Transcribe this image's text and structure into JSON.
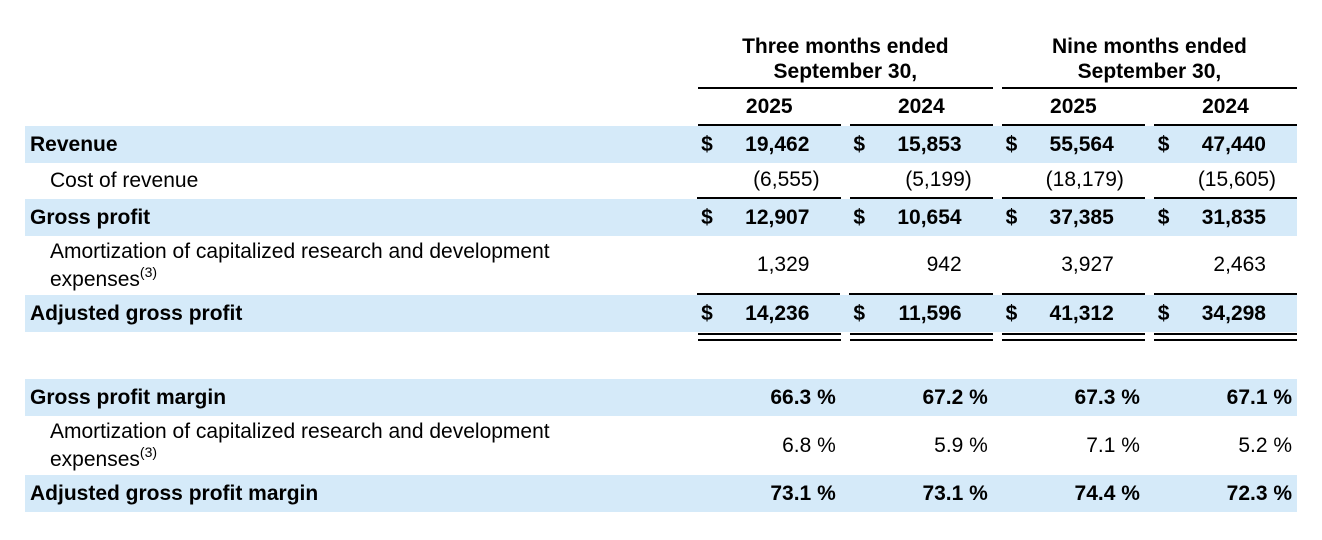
{
  "highlight_color": "#D5EAF9",
  "header": {
    "groups": [
      {
        "line1": "Three months ended",
        "line2": "September 30,",
        "years": [
          "2025",
          "2024"
        ]
      },
      {
        "line1": "Nine months ended",
        "line2": "September 30,",
        "years": [
          "2025",
          "2024"
        ]
      }
    ]
  },
  "rows": [
    {
      "label": "Revenue",
      "prefix": "$",
      "values": [
        "19,462",
        "15,853",
        "55,564",
        "47,440"
      ]
    },
    {
      "label": "Cost of revenue",
      "values": [
        "(6,555)",
        "(5,199)",
        "(18,179)",
        "(15,605)"
      ]
    },
    {
      "label": "Gross profit",
      "prefix": "$",
      "values": [
        "12,907",
        "10,654",
        "37,385",
        "31,835"
      ]
    },
    {
      "label_line1": "Amortization of capitalized research and development",
      "label_line2": "expenses",
      "footnote": "(3)",
      "values": [
        "1,329",
        "942",
        "3,927",
        "2,463"
      ]
    },
    {
      "label": "Adjusted gross profit",
      "prefix": "$",
      "values": [
        "14,236",
        "11,596",
        "41,312",
        "34,298"
      ]
    },
    {
      "label": "Gross profit margin",
      "values": [
        "66.3 %",
        "67.2 %",
        "67.3 %",
        "67.1 %"
      ]
    },
    {
      "label_line1": "Amortization of capitalized research and development",
      "label_line2": "expenses",
      "footnote": "(3)",
      "values": [
        "6.8 %",
        "5.9 %",
        "7.1 %",
        "5.2 %"
      ]
    },
    {
      "label": "Adjusted gross profit margin",
      "values": [
        "73.1 %",
        "73.1 %",
        "74.4 %",
        "72.3 %"
      ]
    }
  ]
}
